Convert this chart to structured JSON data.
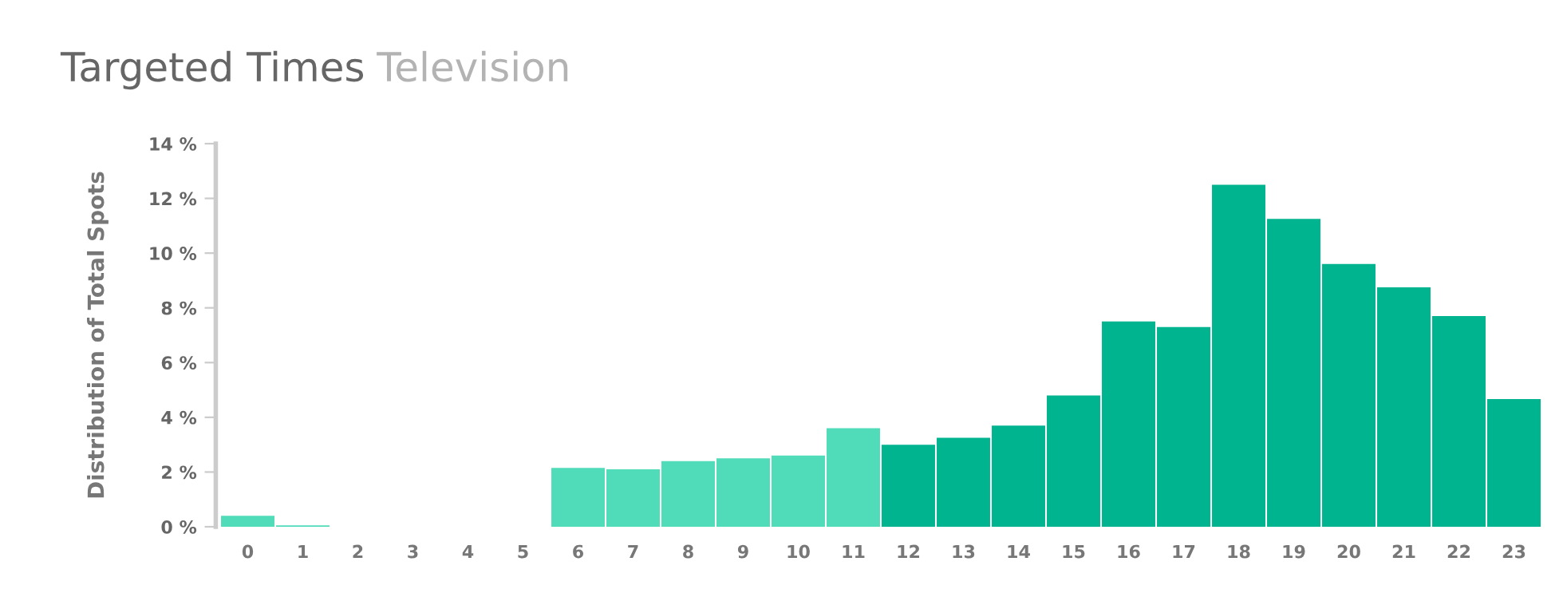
{
  "chart_data": {
    "type": "bar",
    "title": "Targeted Times",
    "subtitle": "Television",
    "ylabel": "Distribution of Total Spots",
    "categories": [
      "0",
      "1",
      "2",
      "3",
      "4",
      "5",
      "6",
      "7",
      "8",
      "9",
      "10",
      "11",
      "12",
      "13",
      "14",
      "15",
      "16",
      "17",
      "18",
      "19",
      "20",
      "21",
      "22",
      "23"
    ],
    "values": [
      0.4,
      0.05,
      0,
      0,
      0,
      0,
      2.15,
      2.1,
      2.4,
      2.5,
      2.6,
      3.6,
      3.0,
      3.25,
      3.7,
      4.8,
      7.5,
      7.3,
      12.5,
      11.25,
      9.6,
      8.75,
      7.7,
      4.67
    ],
    "colors": [
      "#50dbb9",
      "#50dbb9",
      "#50dbb9",
      "#50dbb9",
      "#50dbb9",
      "#50dbb9",
      "#50dbb9",
      "#50dbb9",
      "#50dbb9",
      "#50dbb9",
      "#50dbb9",
      "#50dbb9",
      "#00b48f",
      "#00b48f",
      "#00b48f",
      "#00b48f",
      "#00b48f",
      "#00b48f",
      "#00b48f",
      "#00b48f",
      "#00b48f",
      "#00b48f",
      "#00b48f",
      "#00b48f"
    ],
    "ylim": [
      0,
      14
    ],
    "yticks": [
      {
        "value": 0,
        "label": "0 %"
      },
      {
        "value": 2,
        "label": "2 %"
      },
      {
        "value": 4,
        "label": "4 %"
      },
      {
        "value": 6,
        "label": "6 %"
      },
      {
        "value": 8,
        "label": "8 %"
      },
      {
        "value": 10,
        "label": "10 %"
      },
      {
        "value": 12,
        "label": "12 %"
      },
      {
        "value": 14,
        "label": "14 %"
      }
    ],
    "grid": false,
    "legend": false
  }
}
